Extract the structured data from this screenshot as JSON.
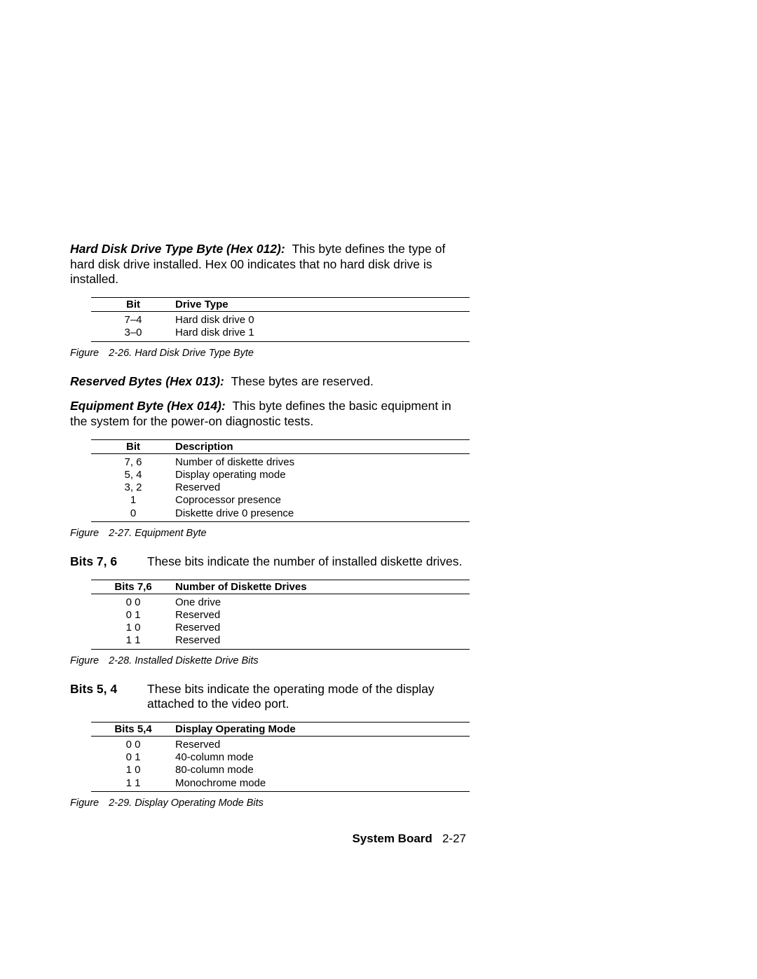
{
  "section1": {
    "lead": "Hard Disk Drive Type Byte (Hex 012):",
    "text": "This byte defines the type of hard disk drive installed.  Hex 00 indicates that no hard disk drive is installed."
  },
  "table1": {
    "head": [
      "Bit",
      "Drive Type"
    ],
    "rows": [
      [
        "7–4",
        "Hard disk drive 0"
      ],
      [
        "3–0",
        "Hard disk drive 1"
      ]
    ]
  },
  "caption1": {
    "fig": "Figure",
    "num": "2-26. Hard Disk Drive Type Byte"
  },
  "section2": {
    "lead": "Reserved Bytes (Hex 013):",
    "text": "These bytes are reserved."
  },
  "section3": {
    "lead": "Equipment Byte (Hex 014):",
    "text": "This byte defines the basic equipment in the system for the power-on diagnostic tests."
  },
  "table2": {
    "head": [
      "Bit",
      "Description"
    ],
    "rows": [
      [
        "7, 6",
        "Number of diskette drives"
      ],
      [
        "5, 4",
        "Display operating mode"
      ],
      [
        "3, 2",
        "Reserved"
      ],
      [
        "1",
        "Coprocessor presence"
      ],
      [
        "0",
        "Diskette drive 0 presence"
      ]
    ]
  },
  "caption2": {
    "fig": "Figure",
    "num": "2-27. Equipment Byte"
  },
  "bits76": {
    "label": "Bits 7, 6",
    "text": "These bits indicate the number of installed diskette drives."
  },
  "table3": {
    "head": [
      "Bits 7,6",
      "Number of Diskette Drives"
    ],
    "rows": [
      [
        "0 0",
        "One drive"
      ],
      [
        "0 1",
        "Reserved"
      ],
      [
        "1 0",
        "Reserved"
      ],
      [
        "1 1",
        "Reserved"
      ]
    ]
  },
  "caption3": {
    "fig": "Figure",
    "num": "2-28. Installed Diskette Drive Bits"
  },
  "bits54": {
    "label": "Bits 5, 4",
    "text": "These bits indicate the operating mode of the display attached to the video port."
  },
  "table4": {
    "head": [
      "Bits 5,4",
      "Display Operating Mode"
    ],
    "rows": [
      [
        "0 0",
        "Reserved"
      ],
      [
        "0 1",
        "40-column mode"
      ],
      [
        "1 0",
        "80-column mode"
      ],
      [
        "1 1",
        "Monochrome mode"
      ]
    ]
  },
  "caption4": {
    "fig": "Figure",
    "num": "2-29. Display Operating Mode Bits"
  },
  "footer": {
    "title": "System Board",
    "page": "2-27"
  }
}
